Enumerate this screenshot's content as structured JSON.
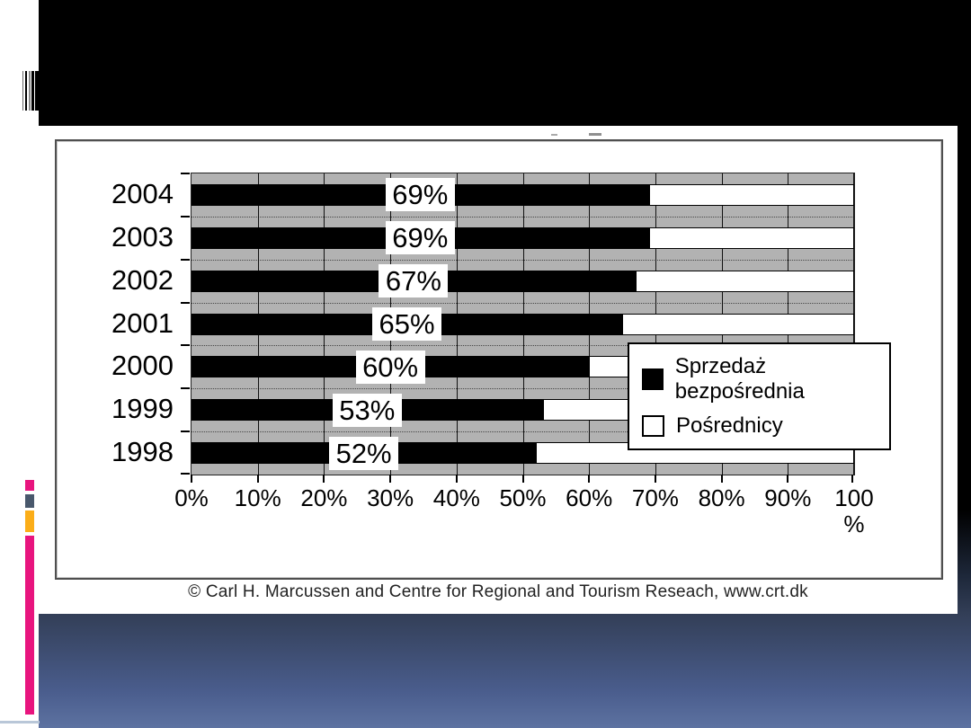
{
  "slide": {
    "copyright": "© Carl H. Marcussen and Centre for Regional and Tourism Reseach, www.crt.dk"
  },
  "chart_data": {
    "type": "bar",
    "orientation": "horizontal",
    "stacked": true,
    "title": "",
    "xlabel": "",
    "ylabel": "",
    "categories": [
      "2004",
      "2003",
      "2002",
      "2001",
      "2000",
      "1999",
      "1998"
    ],
    "series": [
      {
        "name": "Sprzedaż bezpośrednia",
        "color": "#000000",
        "values": [
          69,
          69,
          67,
          65,
          60,
          53,
          52
        ]
      },
      {
        "name": "Pośrednicy",
        "color": "#ffffff",
        "values": [
          31,
          31,
          33,
          35,
          40,
          47,
          48
        ]
      }
    ],
    "data_labels": [
      "69%",
      "69%",
      "67%",
      "65%",
      "60%",
      "53%",
      "52%"
    ],
    "x_tick_labels": [
      "0%",
      "10%",
      "20%",
      "30%",
      "40%",
      "50%",
      "60%",
      "70%",
      "80%",
      "90%",
      "100\n%"
    ],
    "xlim": [
      0,
      100
    ],
    "x_tick_step": 10,
    "grid": "vertical",
    "plot_background": "#b2b2b2",
    "legend_position": "inside-right",
    "footnote": "© Carl H. Marcussen and Centre for Regional and Tourism Reseach, www.crt.dk"
  },
  "colors": {
    "banner_black": "#000000",
    "gradient_mid_blue": "#333f58",
    "gradient_bottom_blue": "#5d72a1",
    "plot_gray": "#b2b2b2",
    "accent_pink": "#e8147e",
    "accent_orange": "#fbad18",
    "accent_slate": "#49586c",
    "accent_lightblue": "#b9c7d8"
  }
}
